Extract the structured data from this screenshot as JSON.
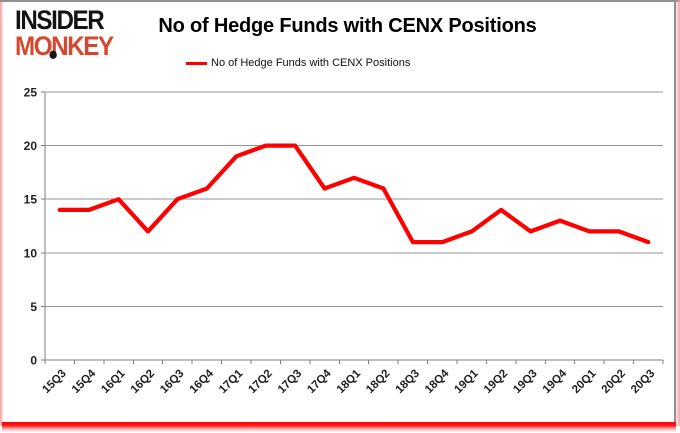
{
  "logo": {
    "line1": "INSIDER",
    "line2": "MONKEY"
  },
  "header": {
    "title": "No of Hedge Funds with CENX Positions"
  },
  "legend": {
    "label": "No of Hedge Funds with CENX Positions",
    "line_color": "#ff0000"
  },
  "chart_data": {
    "type": "line",
    "title": "No of Hedge Funds with CENX Positions",
    "categories": [
      "15Q3",
      "15Q4",
      "16Q1",
      "16Q2",
      "16Q3",
      "16Q4",
      "17Q1",
      "17Q2",
      "17Q3",
      "17Q4",
      "18Q1",
      "18Q2",
      "18Q3",
      "18Q4",
      "19Q1",
      "19Q2",
      "19Q3",
      "19Q4",
      "20Q1",
      "20Q2",
      "20Q3"
    ],
    "series": [
      {
        "name": "No of Hedge Funds with CENX Positions",
        "color": "#ff0000",
        "values": [
          14,
          14,
          15,
          12,
          15,
          16,
          19,
          20,
          20,
          16,
          17,
          16,
          11,
          11,
          12,
          14,
          12,
          13,
          12,
          12,
          11
        ]
      }
    ],
    "xlabel": "",
    "ylabel": "",
    "ylim": [
      0,
      25
    ],
    "y_ticks": [
      0,
      5,
      10,
      15,
      20,
      25
    ],
    "grid": "horizontal",
    "legend_position": "top-center"
  },
  "colors": {
    "series_red": "#ff0000",
    "grid_gray": "#969696",
    "axis_gray": "#7f7f7f",
    "tick_label": "#1f1f1f",
    "brand_red": "#d7472d",
    "border_gray": "#8e8e8e"
  }
}
